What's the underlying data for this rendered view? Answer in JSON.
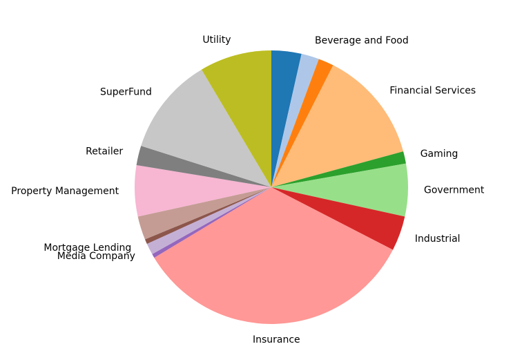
{
  "chart_data": {
    "type": "pie",
    "title": "",
    "start_angle_deg": 90,
    "direction": "clockwise",
    "slices": [
      {
        "label": "",
        "value": 3.7,
        "color": "#1f77b4"
      },
      {
        "label": "Beverage and Food",
        "value": 2.2,
        "color": "#aec7e8"
      },
      {
        "label": "",
        "value": 1.9,
        "color": "#ff7f0e"
      },
      {
        "label": "Financial Services",
        "value": 13.9,
        "color": "#ffbb78"
      },
      {
        "label": "Gaming",
        "value": 1.5,
        "color": "#2ca02c"
      },
      {
        "label": "Government",
        "value": 6.5,
        "color": "#98df8a"
      },
      {
        "label": "Industrial",
        "value": 4.3,
        "color": "#d62728"
      },
      {
        "label": "Insurance",
        "value": 35.3,
        "color": "#ff9896"
      },
      {
        "label": "",
        "value": 0.5,
        "color": "#9467bd"
      },
      {
        "label": "Media Company",
        "value": 1.4,
        "color": "#c5b0d5"
      },
      {
        "label": "Mortgage Lending",
        "value": 0.6,
        "color": "#8c564b"
      },
      {
        "label": "",
        "value": 2.9,
        "color": "#c49c94"
      },
      {
        "label": "Property Management",
        "value": 6.3,
        "color": "#f7b6d2"
      },
      {
        "label": "Retailer",
        "value": 2.4,
        "color": "#7f7f7f"
      },
      {
        "label": "SuperFund",
        "value": 12.1,
        "color": "#c7c7c7"
      },
      {
        "label": "Utility",
        "value": 8.9,
        "color": "#bcbd22"
      }
    ]
  }
}
